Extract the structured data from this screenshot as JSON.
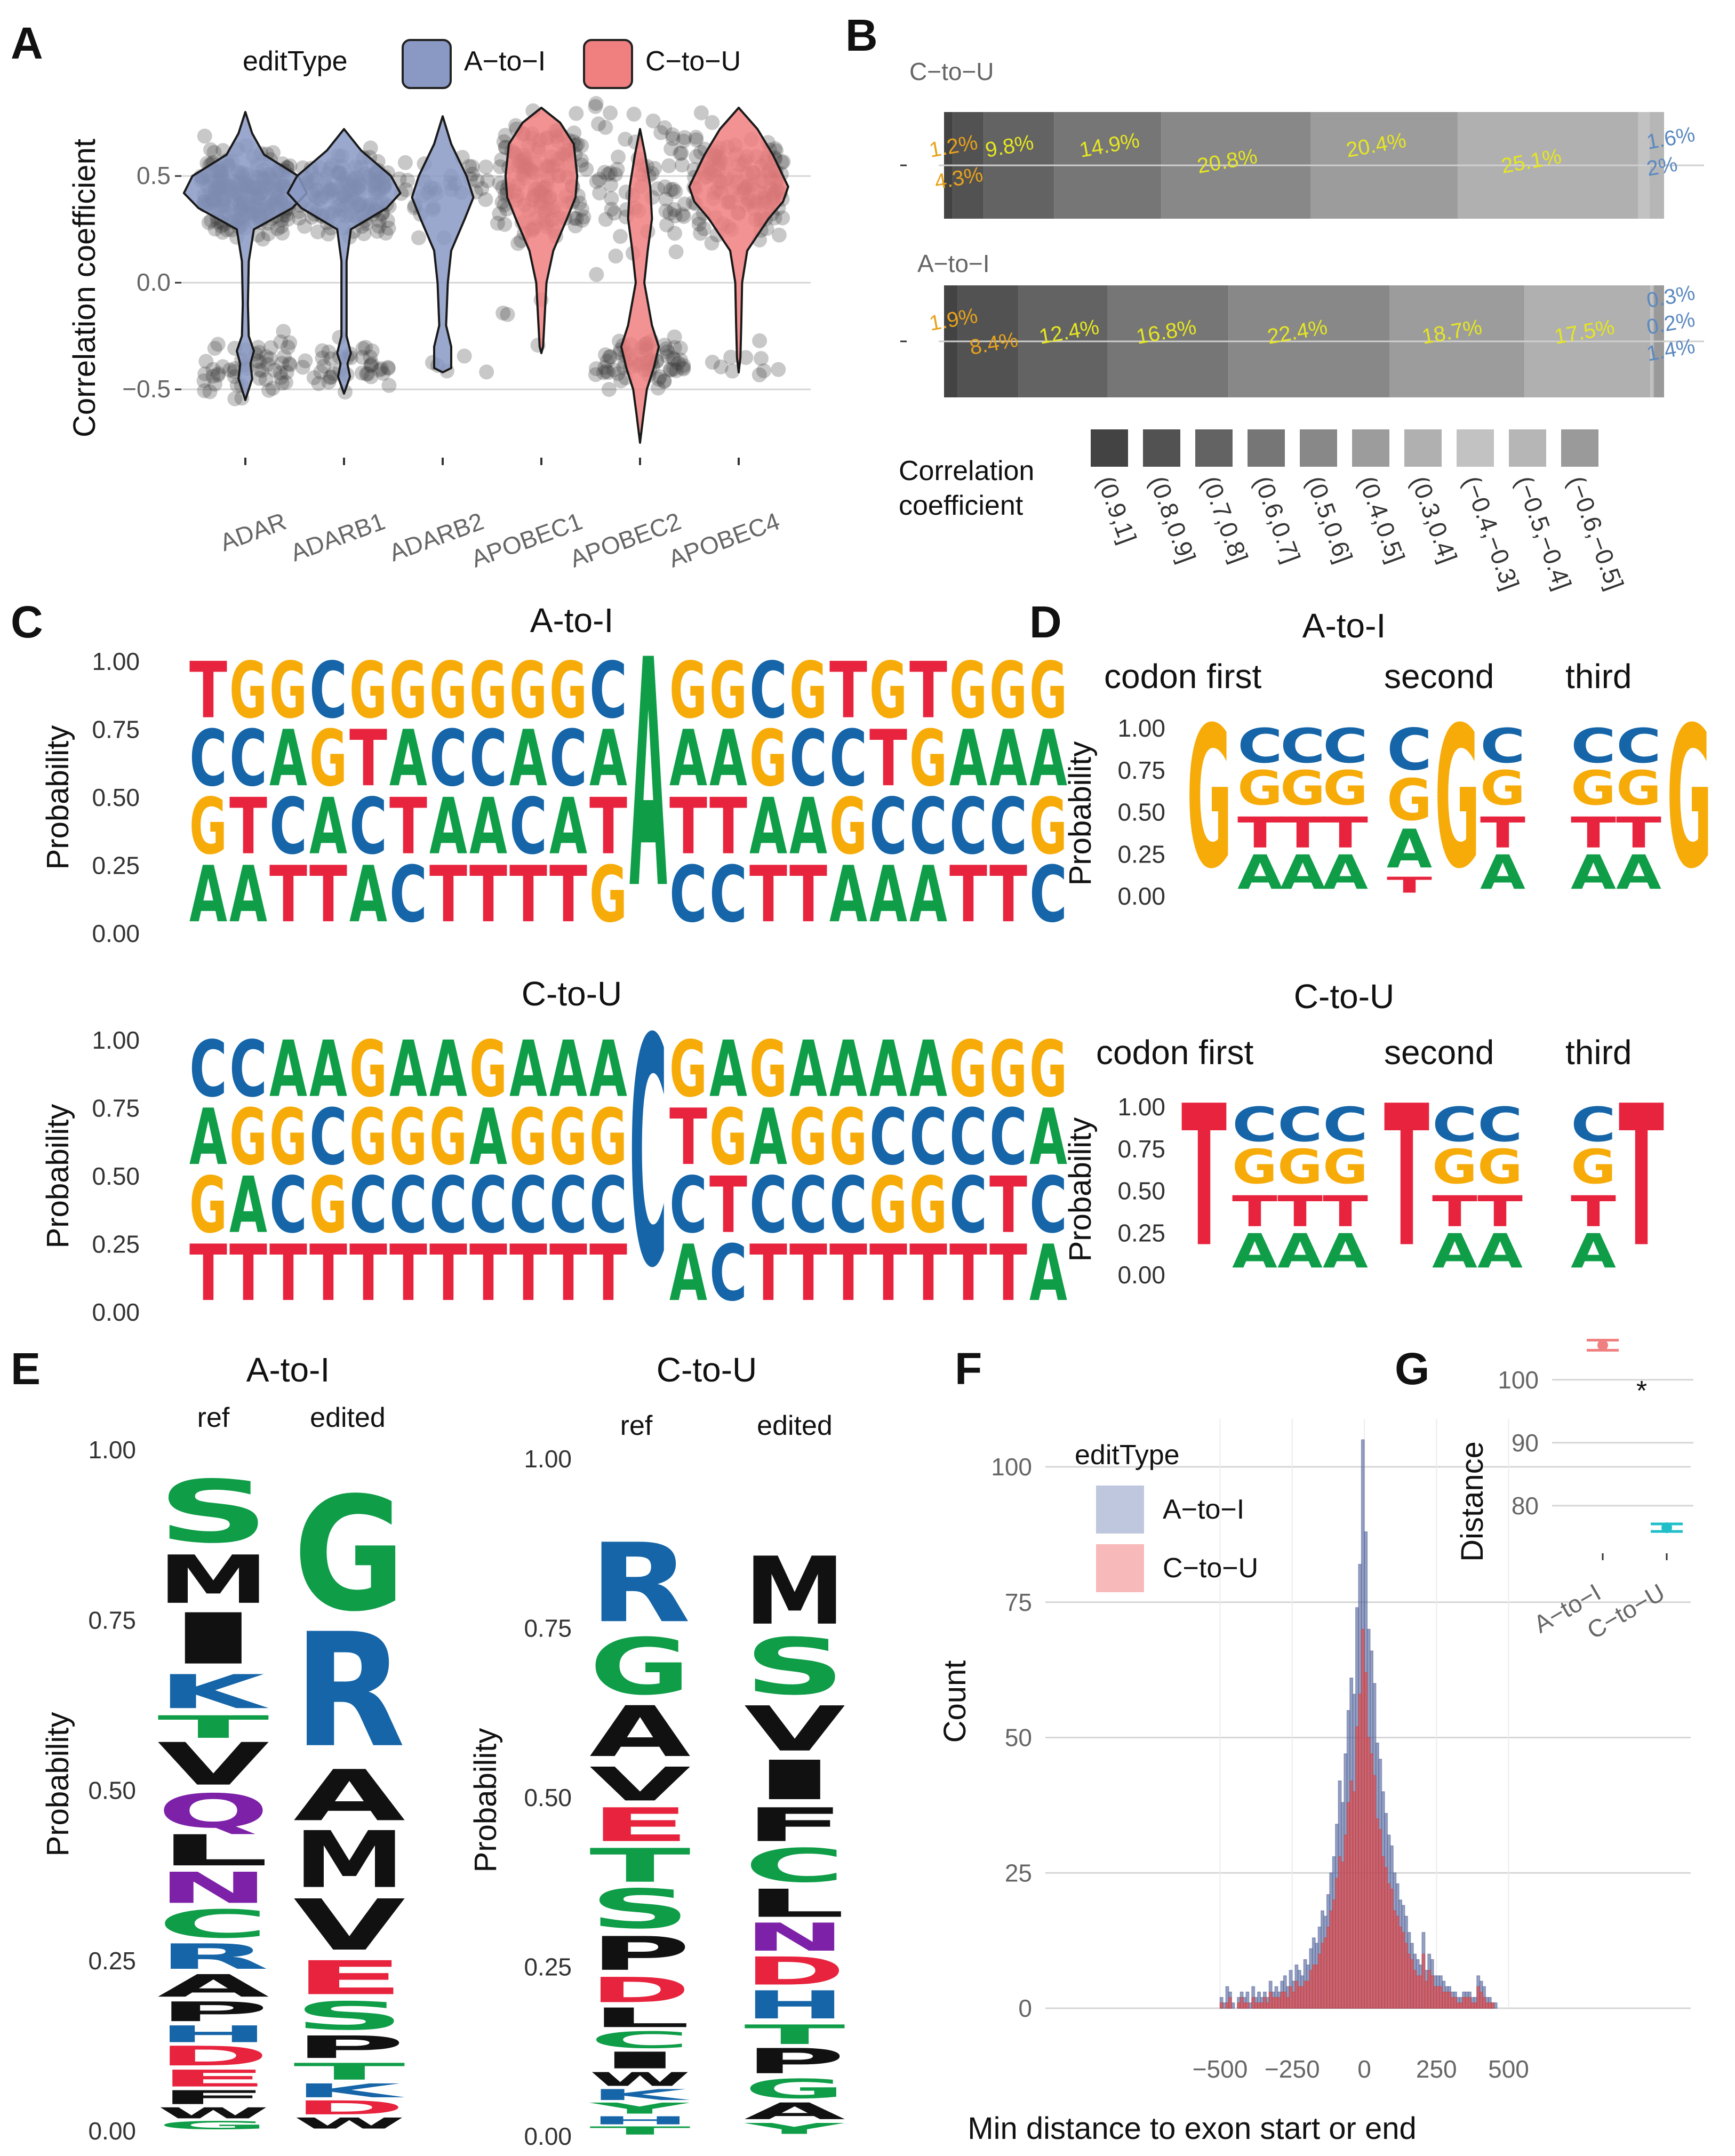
{
  "panels": [
    "A",
    "B",
    "C",
    "D",
    "E",
    "F",
    "G"
  ],
  "colors": {
    "A_to_I": "#8a99c4",
    "C_to_U": "#f07f7f",
    "nt_A": "#0f9d48",
    "nt_C": "#1565a8",
    "nt_G": "#f6ab09",
    "nt_T": "#e8233d",
    "bar_pct_top": "#e8a21c",
    "bar_pct_mid": "#e6e622",
    "bar_pct_neg": "#5b89c0"
  },
  "panelA": {
    "legend_title": "editType",
    "legend_items": [
      "A−to−I",
      "C−to−U"
    ],
    "ylabel": "Correlation coefficient",
    "ytick_labels": [
      "0.5",
      "0.0",
      "−0.5"
    ],
    "yticks": [
      0.5,
      0.0,
      -0.5
    ],
    "ylim": [
      -0.75,
      0.85
    ],
    "genes": [
      "ADAR",
      "ADARB1",
      "ADARB2",
      "APOBEC1",
      "APOBEC2",
      "APOBEC4"
    ],
    "gene_type": [
      "A_to_I",
      "A_to_I",
      "A_to_I",
      "C_to_U",
      "C_to_U",
      "C_to_U"
    ]
  },
  "panelB": {
    "groups": [
      {
        "name": "C−to−U",
        "segments": [
          {
            "bin": "(0.9,1]",
            "pct": 1.2,
            "label": "1.2%"
          },
          {
            "bin": "(0.8,0.9]",
            "pct": 4.3,
            "label": "4.3%"
          },
          {
            "bin": "(0.7,0.8]",
            "pct": 9.8,
            "label": "9.8%"
          },
          {
            "bin": "(0.6,0.7]",
            "pct": 14.9,
            "label": "14.9%"
          },
          {
            "bin": "(0.5,0.6]",
            "pct": 20.8,
            "label": "20.8%"
          },
          {
            "bin": "(0.4,0.5]",
            "pct": 20.4,
            "label": "20.4%"
          },
          {
            "bin": "(0.3,0.4]",
            "pct": 25.1,
            "label": "25.1%"
          },
          {
            "bin": "(−0.4,−0.3]",
            "pct": 1.6,
            "label": "1.6%"
          },
          {
            "bin": "(−0.5,−0.4]",
            "pct": 2.0,
            "label": "2%"
          }
        ]
      },
      {
        "name": "A−to−I",
        "segments": [
          {
            "bin": "(0.9,1]",
            "pct": 1.9,
            "label": "1.9%"
          },
          {
            "bin": "(0.8,0.9]",
            "pct": 8.4,
            "label": "8.4%"
          },
          {
            "bin": "(0.7,0.8]",
            "pct": 12.4,
            "label": "12.4%"
          },
          {
            "bin": "(0.6,0.7]",
            "pct": 16.8,
            "label": "16.8%"
          },
          {
            "bin": "(0.5,0.6]",
            "pct": 22.4,
            "label": "22.4%"
          },
          {
            "bin": "(0.4,0.5]",
            "pct": 18.7,
            "label": "18.7%"
          },
          {
            "bin": "(0.3,0.4]",
            "pct": 17.5,
            "label": "17.5%"
          },
          {
            "bin": "(−0.4,−0.3]",
            "pct": 0.3,
            "label": "0.3%"
          },
          {
            "bin": "(−0.5,−0.4]",
            "pct": 0.2,
            "label": "0.2%"
          },
          {
            "bin": "(−0.6,−0.5]",
            "pct": 1.4,
            "label": "1.4%"
          }
        ]
      }
    ],
    "legend_title_1": "Correlation",
    "legend_title_2": "coefficient",
    "legend_bins": [
      "(0.9,1]",
      "(0.8,0.9]",
      "(0.7,0.8]",
      "(0.6,0.7]",
      "(0.5,0.6]",
      "(0.4,0.5]",
      "(0.3,0.4]",
      "(−0.4,−0.3]",
      "(−0.5,−0.4]",
      "(−0.6,−0.5]"
    ],
    "bin_grays": [
      "#434343",
      "#525252",
      "#636363",
      "#767676",
      "#888888",
      "#9c9c9c",
      "#b0b0b0",
      "#c2c2c2",
      "#b6b6b6",
      "#9a9a9a"
    ]
  },
  "panelC": {
    "ylabel": "Probability",
    "ytick_labels": [
      "1.00",
      "0.75",
      "0.50",
      "0.25",
      "0.00"
    ],
    "logos": [
      {
        "title": "A-to-I",
        "columns": [
          "AGCT",
          "ATCG",
          "TCAG",
          "TAGC",
          "ACTG",
          "CTAG",
          "TACG",
          "TACG",
          "TCAG",
          "TACG",
          "GTAC",
          "A",
          "CTAG",
          "CTAG",
          "TAGC",
          "TACG",
          "AGCT",
          "ACTG",
          "ACGT",
          "TCAG",
          "TCAG",
          "CGAG"
        ]
      },
      {
        "title": "C-to-U",
        "columns": [
          "TGAC",
          "TAGC",
          "TCGA",
          "TGCA",
          "TCGG",
          "TCGA",
          "TCGA",
          "TCAG",
          "TCGA",
          "TCGA",
          "TCGA",
          "C",
          "ACTG",
          "CTGA",
          "TCAG",
          "TCGA",
          "TCGA",
          "TGCA",
          "TGCA",
          "TCCG",
          "TTCG",
          "ACAG"
        ]
      }
    ]
  },
  "panelD": {
    "ylabel": "Probability",
    "ytick_labels": [
      "1.00",
      "0.75",
      "0.50",
      "0.25",
      "0.00"
    ],
    "group_labels": [
      "codon first",
      "second",
      "third"
    ],
    "logos": [
      {
        "title": "A-to-I",
        "columns": [
          "G",
          "ATGC",
          "ATGC",
          "ATGC",
          "TAGC",
          "G",
          "ATGC",
          "ATGC",
          "ATGC",
          "G"
        ]
      },
      {
        "title": "C-to-U",
        "columns": [
          "T",
          "ATGC",
          "ATGC",
          "ATGC",
          "T",
          "ATGC",
          "ATGC",
          "ATGC",
          "T"
        ]
      }
    ]
  },
  "panelE": {
    "ylabel": "Probability",
    "logos": [
      {
        "title": "A-to-I",
        "col_labels": [
          "ref",
          "edited"
        ],
        "ytick_labels": [
          "1.00",
          "0.75",
          "0.50",
          "0.25",
          "0.00"
        ],
        "columns": [
          [
            [
              "G",
              0.015
            ],
            [
              "W",
              0.02
            ],
            [
              "F",
              0.025
            ],
            [
              "E",
              0.03
            ],
            [
              "D",
              0.035
            ],
            [
              "H",
              0.03
            ],
            [
              "P",
              0.035
            ],
            [
              "A",
              0.04
            ],
            [
              "R",
              0.045
            ],
            [
              "C",
              0.05
            ],
            [
              "N",
              0.055
            ],
            [
              "L",
              0.055
            ],
            [
              "Q",
              0.06
            ],
            [
              "V",
              0.075
            ],
            [
              "T",
              0.04
            ],
            [
              "K",
              0.06
            ],
            [
              "I",
              0.09
            ],
            [
              "M",
              0.085
            ],
            [
              "S",
              0.11
            ]
          ],
          [
            [
              "W",
              0.02
            ],
            [
              "D",
              0.025
            ],
            [
              "K",
              0.025
            ],
            [
              "T",
              0.03
            ],
            [
              "P",
              0.04
            ],
            [
              "S",
              0.05
            ],
            [
              "E",
              0.06
            ],
            [
              "V",
              0.09
            ],
            [
              "M",
              0.1
            ],
            [
              "A",
              0.09
            ],
            [
              "R",
              0.2
            ],
            [
              "G",
              0.2
            ]
          ]
        ]
      },
      {
        "title": "C-to-U",
        "col_labels": [
          "ref",
          "edited"
        ],
        "ytick_labels": [
          "1.00",
          "0.75",
          "0.50",
          "0.25",
          "0.00"
        ],
        "columns": [
          [
            [
              "T",
              0.015
            ],
            [
              "H",
              0.015
            ],
            [
              "Y",
              0.02
            ],
            [
              "K",
              0.02
            ],
            [
              "W",
              0.025
            ],
            [
              "I",
              0.03
            ],
            [
              "C",
              0.03
            ],
            [
              "L",
              0.035
            ],
            [
              "D",
              0.045
            ],
            [
              "P",
              0.06
            ],
            [
              "S",
              0.07
            ],
            [
              "T",
              0.06
            ],
            [
              "E",
              0.06
            ],
            [
              "V",
              0.06
            ],
            [
              "A",
              0.09
            ],
            [
              "G",
              0.1
            ],
            [
              "R",
              0.14
            ]
          ],
          [
            [
              "Y",
              0.02
            ],
            [
              "A",
              0.03
            ],
            [
              "G",
              0.035
            ],
            [
              "P",
              0.045
            ],
            [
              "T",
              0.035
            ],
            [
              "H",
              0.05
            ],
            [
              "D",
              0.05
            ],
            [
              "N",
              0.05
            ],
            [
              "L",
              0.05
            ],
            [
              "C",
              0.06
            ],
            [
              "F",
              0.06
            ],
            [
              "I",
              0.07
            ],
            [
              "V",
              0.08
            ],
            [
              "S",
              0.1
            ],
            [
              "M",
              0.12
            ]
          ]
        ]
      }
    ],
    "aa_colors": {
      "S": "#0f9d48",
      "G": "#0f9d48",
      "T": "#0f9d48",
      "C": "#0f9d48",
      "Y": "#0f9d48",
      "N": "#7d21a8",
      "Q": "#7d21a8",
      "K": "#1565a8",
      "R": "#1565a8",
      "H": "#1565a8",
      "D": "#e8233d",
      "E": "#e8233d",
      "A": "#111111",
      "V": "#111111",
      "L": "#111111",
      "I": "#111111",
      "P": "#111111",
      "W": "#111111",
      "F": "#111111",
      "M": "#111111"
    }
  },
  "chart_data": [
    {
      "type": "violin",
      "title": "",
      "xlabel": "",
      "ylabel": "Correlation coefficient",
      "categories": [
        "ADAR",
        "ADARB1",
        "ADARB2",
        "APOBEC1",
        "APOBEC2",
        "APOBEC4"
      ],
      "ylim": [
        -0.75,
        0.85
      ]
    },
    {
      "type": "bar",
      "stacked": true,
      "orientation": "horizontal",
      "categories": [
        "C−to−U",
        "A−to−I"
      ]
    },
    {
      "type": "histogram",
      "xlabel": "Min distance to exon start or end",
      "ylabel": "Count",
      "xlim": [
        -560,
        560
      ],
      "ylim": [
        0,
        105
      ],
      "xtick_labels": [
        "−500",
        "−250",
        "0",
        "250",
        "500"
      ],
      "xticks": [
        -500,
        -250,
        0,
        250,
        500
      ],
      "ytick_labels": [
        "0",
        "25",
        "50",
        "75",
        "100"
      ],
      "yticks": [
        0,
        25,
        50,
        75,
        100
      ],
      "legend_title": "editType",
      "legend_items": [
        "A−to−I",
        "C−to−U"
      ],
      "bin_width": 10,
      "bin_start": -500,
      "series": [
        {
          "name": "A−to−I",
          "values": [
            2,
            1,
            4,
            3,
            1,
            0,
            2,
            3,
            2,
            3,
            1,
            4,
            2,
            3,
            2,
            3,
            2,
            5,
            3,
            4,
            3,
            5,
            6,
            4,
            7,
            5,
            8,
            7,
            6,
            9,
            8,
            11,
            13,
            12,
            15,
            18,
            17,
            21,
            25,
            28,
            34,
            42,
            38,
            47,
            55,
            61,
            58,
            74,
            82,
            105,
            88,
            70,
            66,
            60,
            49,
            46,
            40,
            36,
            32,
            30,
            25,
            23,
            20,
            19,
            17,
            14,
            12,
            10,
            9,
            8,
            14,
            7,
            10,
            9,
            6,
            6,
            6,
            5,
            4,
            4,
            3,
            3,
            2,
            2,
            3,
            3,
            3,
            2,
            2,
            6,
            5,
            4,
            2,
            2,
            1,
            1,
            0,
            0,
            0,
            0
          ]
        },
        {
          "name": "C−to−U",
          "values": [
            1,
            0,
            1,
            2,
            0,
            0,
            1,
            2,
            1,
            1,
            0,
            2,
            1,
            1,
            1,
            2,
            1,
            3,
            2,
            2,
            2,
            3,
            3,
            2,
            4,
            3,
            5,
            4,
            4,
            5,
            5,
            7,
            8,
            8,
            10,
            12,
            13,
            15,
            18,
            20,
            24,
            28,
            27,
            32,
            38,
            42,
            40,
            52,
            58,
            70,
            62,
            50,
            47,
            43,
            35,
            33,
            28,
            26,
            23,
            22,
            18,
            17,
            15,
            14,
            12,
            10,
            9,
            7,
            6,
            6,
            10,
            5,
            7,
            6,
            4,
            4,
            4,
            3,
            3,
            3,
            2,
            2,
            1,
            1,
            2,
            2,
            2,
            1,
            1,
            4,
            3,
            2,
            1,
            1,
            1,
            0,
            0,
            0,
            0,
            0
          ]
        }
      ]
    },
    {
      "type": "pointrange",
      "ylabel": "Distance",
      "categories": [
        "A−to−I",
        "C−to−U"
      ],
      "values": [
        105.5,
        76.5
      ],
      "errors": [
        0.8,
        0.6
      ],
      "ylim": [
        74,
        108
      ],
      "ytick_labels": [
        "100",
        "90",
        "80"
      ],
      "yticks": [
        100,
        90,
        80
      ],
      "annotation": "*"
    }
  ]
}
